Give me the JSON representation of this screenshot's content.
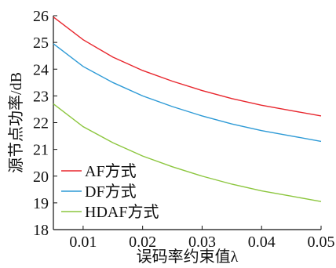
{
  "chart_data": {
    "type": "line",
    "title": "",
    "xlabel": "误码率约束值λ",
    "ylabel": "源节点功率/dB",
    "xlim": [
      0.005,
      0.05
    ],
    "ylim": [
      18,
      26
    ],
    "xticks": [
      0.01,
      0.02,
      0.03,
      0.04,
      0.05
    ],
    "xtick_labels": [
      "0.01",
      "0.02",
      "0.03",
      "0.04",
      "0.05"
    ],
    "yticks": [
      18,
      19,
      20,
      21,
      22,
      23,
      24,
      25,
      26
    ],
    "ytick_labels": [
      "18",
      "19",
      "20",
      "21",
      "22",
      "23",
      "24",
      "25",
      "26"
    ],
    "x": [
      0.005,
      0.01,
      0.015,
      0.02,
      0.025,
      0.03,
      0.035,
      0.04,
      0.045,
      0.05
    ],
    "series": [
      {
        "name": "AF方式",
        "color": "#e8262d",
        "values": [
          25.95,
          25.1,
          24.45,
          23.95,
          23.55,
          23.2,
          22.9,
          22.65,
          22.45,
          22.25
        ]
      },
      {
        "name": "DF方式",
        "color": "#2d9ad6",
        "values": [
          24.95,
          24.1,
          23.5,
          23.0,
          22.6,
          22.25,
          21.95,
          21.7,
          21.5,
          21.3
        ]
      },
      {
        "name": "HDAF方式",
        "color": "#8cc63e",
        "values": [
          22.7,
          21.85,
          21.25,
          20.75,
          20.35,
          20.0,
          19.7,
          19.45,
          19.25,
          19.05
        ]
      }
    ],
    "legend": {
      "position": "bottom-left",
      "items": [
        "AF方式",
        "DF方式",
        "HDAF方式"
      ]
    },
    "grid": false
  }
}
